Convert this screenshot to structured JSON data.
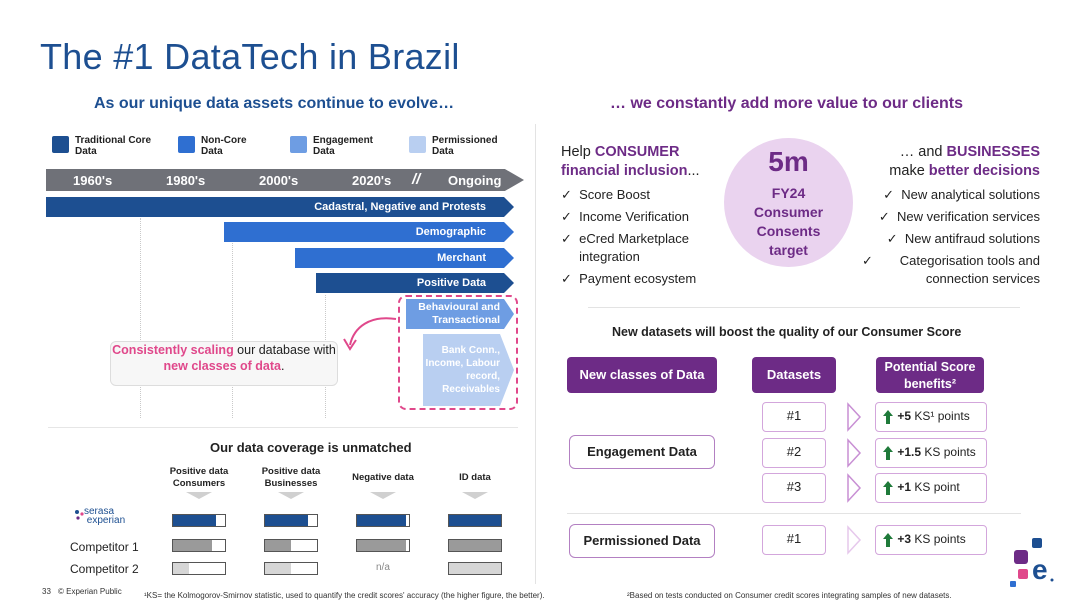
{
  "title": "The #1 DataTech in Brazil",
  "left": {
    "subtitle": "As our unique data assets continue to evolve…",
    "legend": [
      {
        "label": "Traditional Core Data",
        "color": "#1d4f91"
      },
      {
        "label": "Non-Core Data",
        "color": "#2f6fd1"
      },
      {
        "label": "Engagement Data",
        "color": "#6e9de3"
      },
      {
        "label": "Permissioned Data",
        "color": "#b9cff1"
      }
    ],
    "timeline": [
      "1960's",
      "1980's",
      "2000's",
      "2020's",
      "//",
      "Ongoing"
    ],
    "bars": [
      "Cadastral, Negative and Protests",
      "Demographic",
      "Merchant",
      "Positive Data",
      "Behavioural and Transactional",
      "Bank Conn., Income, Labour record, Receivables"
    ],
    "note": {
      "p1": "Consistently scaling",
      "p2": " our database with ",
      "p3": "new classes of data",
      "p4": "."
    },
    "coverage": {
      "title": "Our data coverage is unmatched",
      "columns": [
        "Positive data Consumers",
        "Positive data Businesses",
        "Negative data",
        "ID data"
      ],
      "rows": [
        {
          "label": "serasa experian",
          "fills": [
            0.82,
            0.82,
            0.95,
            1.0
          ],
          "color": "#1d4f91"
        },
        {
          "label": "Competitor 1",
          "fills": [
            0.75,
            0.5,
            0.95,
            1.0
          ],
          "color": "#9a9a9a"
        },
        {
          "label": "Competitor 2",
          "fills": [
            0.3,
            0.5,
            null,
            1.0
          ],
          "color": "#d6d6d6"
        }
      ],
      "na": "n/a"
    },
    "page_number": "33",
    "classification": "© Experian Public",
    "footnote": "¹KS= the Kolmogorov-Smirnov statistic, used to quantify the credit scores' accuracy (the higher figure, the better)."
  },
  "right": {
    "subtitle": "… we constantly add more value to our clients",
    "consumer": {
      "pre": "Help ",
      "hl": "CONSUMER",
      "line2": "financial inclusion",
      "post": "...",
      "items": [
        "Score Boost",
        "Income Verification",
        "eCred Marketplace integration",
        "Payment ecosystem"
      ]
    },
    "target": {
      "value": "5m",
      "l1": "FY24",
      "l2": "Consumer",
      "l3": "Consents",
      "l4": "target"
    },
    "business": {
      "pre": "… and ",
      "hl": "BUSINESSES",
      "line2a": "make ",
      "line2b": "better decisions",
      "items": [
        "New analytical solutions",
        "New verification services",
        "New antifraud solutions",
        "Categorisation tools and connection services"
      ]
    },
    "datasets_title": "New datasets will boost the quality of our Consumer Score",
    "headers": [
      "New classes of Data",
      "Datasets",
      "Potential Score benefits²"
    ],
    "groups": [
      {
        "label": "Engagement Data",
        "rows": [
          {
            "ds": "#1",
            "val": "+5",
            "unit": " KS¹ points"
          },
          {
            "ds": "#2",
            "val": "+1.5",
            "unit": " KS points"
          },
          {
            "ds": "#3",
            "val": "+1",
            "unit": " KS point"
          }
        ]
      },
      {
        "label": "Permissioned Data",
        "rows": [
          {
            "ds": "#1",
            "val": "+3",
            "unit": " KS points"
          }
        ]
      }
    ],
    "footnote": "²Based on tests conducted on Consumer credit scores integrating samples of new datasets."
  },
  "colors": {
    "brand_blue": "#1d4f91",
    "brand_purple": "#6d2b86",
    "pink": "#e0488b",
    "green_arrow": "#1f7a3a"
  }
}
